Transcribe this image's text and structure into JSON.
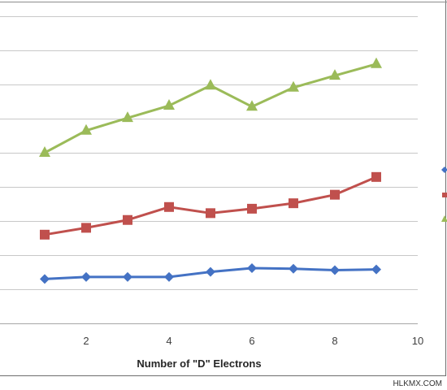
{
  "chart_data": {
    "type": "line",
    "xlabel": "Number of \"D\" Electrons",
    "xlim": [
      0,
      10
    ],
    "xticks": [
      2,
      4,
      6,
      8,
      10
    ],
    "ylim": [
      0,
      9
    ],
    "grid": true,
    "x": [
      1,
      2,
      3,
      4,
      5,
      6,
      7,
      8,
      9
    ],
    "series": [
      {
        "color": "#4472C4",
        "marker": "diamond",
        "values": [
          1.3,
          1.36,
          1.36,
          1.36,
          1.51,
          1.62,
          1.6,
          1.56,
          1.58
        ]
      },
      {
        "color": "#C0504D",
        "marker": "square",
        "values": [
          2.6,
          2.8,
          3.03,
          3.41,
          3.23,
          3.36,
          3.52,
          3.77,
          4.29
        ]
      },
      {
        "color": "#9BBB59",
        "marker": "triangle",
        "values": [
          5.0,
          5.65,
          6.02,
          6.38,
          6.97,
          6.35,
          6.91,
          7.26,
          7.6
        ]
      }
    ]
  },
  "watermark": "HLKMX.COM"
}
